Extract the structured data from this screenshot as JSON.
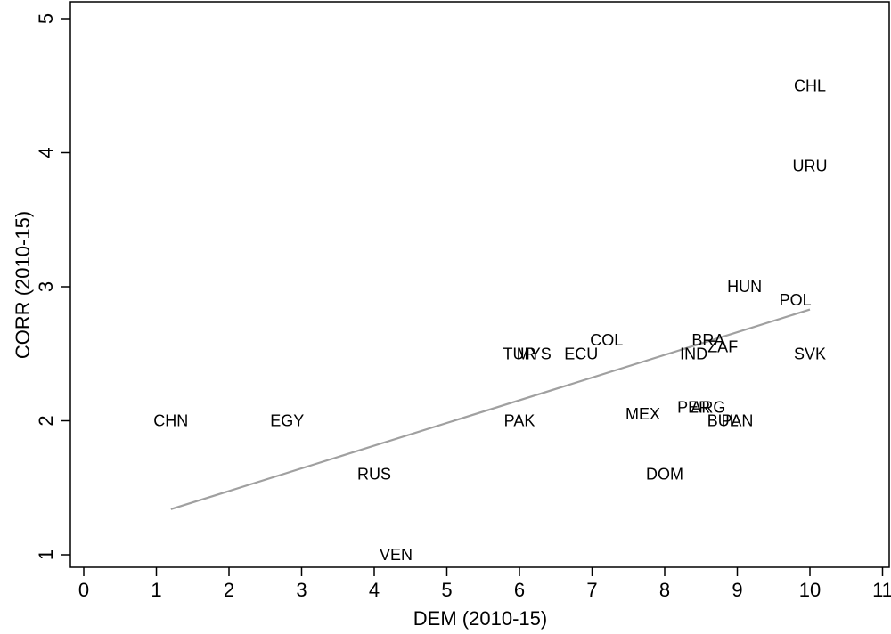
{
  "chart_data": {
    "type": "scatter",
    "xlabel": "DEM (2010-15)",
    "ylabel": "CORR (2010-15)",
    "xlim": [
      0,
      11
    ],
    "ylim": [
      1,
      5
    ],
    "x_ticks": [
      "0",
      "1",
      "2",
      "3",
      "4",
      "5",
      "6",
      "7",
      "8",
      "9",
      "10",
      "11"
    ],
    "y_ticks": [
      "1",
      "2",
      "3",
      "4",
      "5"
    ],
    "grid": false,
    "points": [
      {
        "label": "CHL",
        "x": 10.0,
        "y": 4.5
      },
      {
        "label": "URU",
        "x": 10.0,
        "y": 3.9
      },
      {
        "label": "HUN",
        "x": 9.1,
        "y": 3.0
      },
      {
        "label": "POL",
        "x": 9.8,
        "y": 2.9
      },
      {
        "label": "SVK",
        "x": 10.0,
        "y": 2.5
      },
      {
        "label": "COL",
        "x": 7.2,
        "y": 2.6
      },
      {
        "label": "BRA",
        "x": 8.6,
        "y": 2.6
      },
      {
        "label": "ZAF",
        "x": 8.8,
        "y": 2.55
      },
      {
        "label": "IND",
        "x": 8.4,
        "y": 2.5
      },
      {
        "label": "ECU",
        "x": 6.85,
        "y": 2.5
      },
      {
        "label": "TUR",
        "x": 6.0,
        "y": 2.5
      },
      {
        "label": "MYS",
        "x": 6.2,
        "y": 2.5
      },
      {
        "label": "PAK",
        "x": 6.0,
        "y": 2.0
      },
      {
        "label": "MEX",
        "x": 7.7,
        "y": 2.05
      },
      {
        "label": "PER",
        "x": 8.4,
        "y": 2.1
      },
      {
        "label": "ARG",
        "x": 8.6,
        "y": 2.1
      },
      {
        "label": "BUL",
        "x": 8.8,
        "y": 2.0
      },
      {
        "label": "PAN",
        "x": 9.0,
        "y": 2.0
      },
      {
        "label": "CHN",
        "x": 1.2,
        "y": 2.0
      },
      {
        "label": "EGY",
        "x": 2.8,
        "y": 2.0
      },
      {
        "label": "RUS",
        "x": 4.0,
        "y": 1.6
      },
      {
        "label": "DOM",
        "x": 8.0,
        "y": 1.6
      },
      {
        "label": "VEN",
        "x": 4.3,
        "y": 1.0
      }
    ],
    "fit_line": {
      "x": [
        1.2,
        10.0
      ],
      "y": [
        1.34,
        2.83
      ]
    },
    "colors": {
      "fit_line": "#a0a0a0",
      "axis": "#000000",
      "text": "#000000"
    }
  }
}
